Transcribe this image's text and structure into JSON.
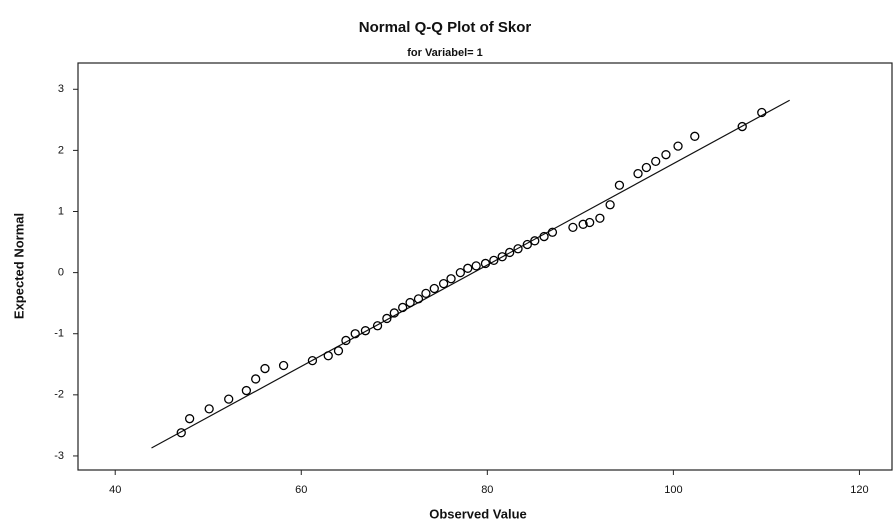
{
  "chart_data": {
    "type": "scatter",
    "title": "Normal Q-Q Plot of Skor",
    "subtitle": "for Variabel= 1",
    "x_label": "Observed Value",
    "y_label": "Expected Normal",
    "xlim": [
      36,
      123.5
    ],
    "ylim": [
      -3.23,
      3.43
    ],
    "xticks": [
      40,
      60,
      80,
      100,
      120
    ],
    "yticks": [
      -3,
      -2,
      -1,
      0,
      1,
      2,
      3
    ],
    "color": "#000000",
    "x": [
      47.1,
      48.0,
      50.1,
      52.2,
      54.1,
      55.1,
      56.1,
      58.1,
      61.2,
      62.9,
      64.0,
      64.8,
      65.8,
      66.9,
      68.2,
      69.2,
      70.0,
      70.9,
      71.7,
      72.6,
      73.4,
      74.3,
      75.3,
      76.1,
      77.1,
      77.9,
      78.8,
      79.8,
      80.7,
      81.6,
      82.4,
      83.3,
      84.3,
      85.1,
      86.1,
      87.0,
      89.2,
      90.3,
      91.0,
      92.1,
      93.2,
      94.2,
      96.2,
      97.1,
      98.1,
      99.2,
      100.5,
      102.3,
      107.4,
      109.5
    ],
    "values": [
      -2.62,
      -2.39,
      -2.23,
      -2.07,
      -1.93,
      -1.74,
      -1.57,
      -1.52,
      -1.44,
      -1.36,
      -1.28,
      -1.11,
      -1.0,
      -0.95,
      -0.87,
      -0.75,
      -0.66,
      -0.57,
      -0.49,
      -0.43,
      -0.34,
      -0.26,
      -0.18,
      -0.1,
      0.0,
      0.07,
      0.11,
      0.15,
      0.2,
      0.26,
      0.33,
      0.39,
      0.46,
      0.52,
      0.59,
      0.66,
      0.74,
      0.79,
      0.82,
      0.89,
      1.11,
      1.43,
      1.62,
      1.72,
      1.82,
      1.93,
      2.07,
      2.23,
      2.39,
      2.62
    ],
    "reference_line": {
      "x": [
        43.9,
        112.5
      ],
      "values": [
        -2.87,
        2.82
      ]
    }
  }
}
